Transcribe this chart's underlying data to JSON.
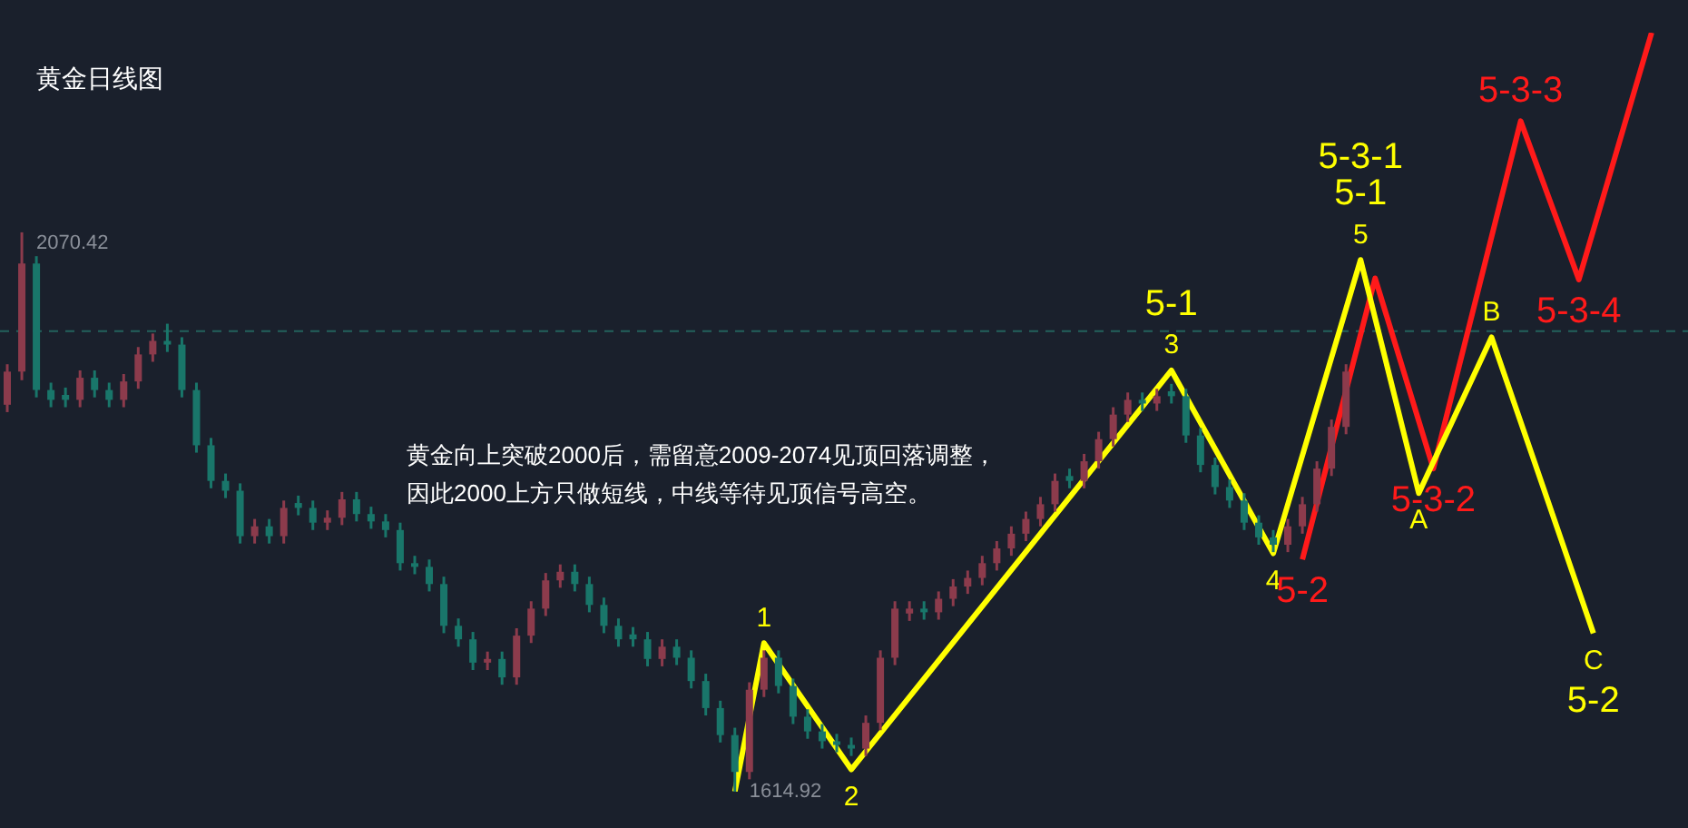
{
  "chart_data": {
    "type": "candlestick",
    "title": "黄金日线图",
    "annotations": [
      "黄金向上突破2000后，需留意2009-2074见顶回落调整，因此2000上方只做短线，中线等待见顶信号高空。",
      {
        "text": "1",
        "y": 1736
      },
      {
        "text": "2",
        "y": 1633
      },
      {
        "text": "5-1\n3",
        "y": 1958
      },
      {
        "text": "4",
        "y": 1809
      },
      {
        "text": "5-3-1\n5-1\n5",
        "y": 2048
      },
      {
        "text": "A",
        "y": 1858
      },
      {
        "text": "B",
        "y": 1985
      },
      {
        "text": "C\n5-2",
        "y": 1744
      },
      {
        "text": "5-2",
        "y": 1804
      },
      {
        "text": "5-3-2",
        "y": 1878
      },
      {
        "text": "5-3-3",
        "y": 2161
      },
      {
        "text": "5-3-4",
        "y": 2032
      }
    ],
    "categories": [
      null,
      null,
      null,
      null,
      null,
      null,
      null,
      null,
      null,
      null,
      null,
      null,
      null,
      null,
      null,
      null,
      null,
      null,
      null,
      null,
      null,
      null,
      null,
      null,
      null,
      null,
      null,
      null,
      null,
      null,
      null,
      null,
      null,
      null,
      null,
      null,
      null,
      null,
      null,
      null,
      null,
      null,
      null,
      null,
      null,
      null,
      null,
      null,
      null,
      null,
      null,
      null,
      null,
      null,
      null,
      null,
      null,
      null,
      null,
      null,
      null,
      null,
      null,
      null,
      null,
      null,
      null,
      null,
      null,
      null,
      null,
      null,
      null,
      null,
      null,
      null,
      null,
      null,
      null,
      null,
      null,
      null,
      null,
      null,
      null,
      null,
      null,
      null,
      null,
      null,
      null,
      null,
      null,
      null,
      null,
      null,
      null,
      null,
      null,
      null,
      null,
      null,
      null,
      null,
      null,
      null,
      null,
      null,
      null,
      null,
      null,
      null,
      null,
      null,
      null,
      null
    ],
    "ohlc": [
      [
        1930,
        1963,
        1924,
        1957
      ],
      [
        1957,
        2070.42,
        1950,
        2045
      ],
      [
        2045,
        2051,
        1936,
        1942
      ],
      [
        1942,
        1948,
        1928,
        1934
      ],
      [
        1938,
        1944,
        1928,
        1934
      ],
      [
        1934,
        1958,
        1928,
        1952
      ],
      [
        1952,
        1958,
        1936,
        1942
      ],
      [
        1942,
        1948,
        1928,
        1934
      ],
      [
        1934,
        1955,
        1928,
        1949
      ],
      [
        1949,
        1977,
        1943,
        1971
      ],
      [
        1971,
        1988,
        1965,
        1982
      ],
      [
        1982,
        1996,
        1973,
        1979
      ],
      [
        1979,
        1985,
        1936,
        1942
      ],
      [
        1942,
        1948,
        1891,
        1897
      ],
      [
        1897,
        1903,
        1862,
        1868
      ],
      [
        1868,
        1874,
        1854,
        1860
      ],
      [
        1860,
        1866,
        1817,
        1823
      ],
      [
        1823,
        1837,
        1817,
        1831
      ],
      [
        1831,
        1837,
        1817,
        1823
      ],
      [
        1823,
        1852,
        1817,
        1846
      ],
      [
        1850,
        1856,
        1840,
        1846
      ],
      [
        1846,
        1852,
        1828,
        1834
      ],
      [
        1834,
        1844,
        1828,
        1838
      ],
      [
        1838,
        1859,
        1832,
        1853
      ],
      [
        1853,
        1859,
        1835,
        1841
      ],
      [
        1841,
        1847,
        1829,
        1835
      ],
      [
        1835,
        1841,
        1822,
        1828
      ],
      [
        1828,
        1834,
        1795,
        1801
      ],
      [
        1801,
        1807,
        1792,
        1798
      ],
      [
        1798,
        1804,
        1778,
        1784
      ],
      [
        1784,
        1790,
        1744,
        1750
      ],
      [
        1750,
        1756,
        1733,
        1739
      ],
      [
        1739,
        1745,
        1714,
        1720
      ],
      [
        1720,
        1729,
        1714,
        1723
      ],
      [
        1723,
        1729,
        1702,
        1708
      ],
      [
        1708,
        1748,
        1702,
        1742
      ],
      [
        1742,
        1770,
        1736,
        1764
      ],
      [
        1764,
        1793,
        1758,
        1787
      ],
      [
        1787,
        1800,
        1781,
        1794
      ],
      [
        1794,
        1800,
        1778,
        1784
      ],
      [
        1784,
        1790,
        1761,
        1767
      ],
      [
        1767,
        1773,
        1744,
        1750
      ],
      [
        1750,
        1756,
        1733,
        1739
      ],
      [
        1743,
        1749,
        1733,
        1739
      ],
      [
        1739,
        1745,
        1717,
        1723
      ],
      [
        1723,
        1739,
        1717,
        1733
      ],
      [
        1733,
        1739,
        1718,
        1724
      ],
      [
        1724,
        1730,
        1699,
        1705
      ],
      [
        1705,
        1711,
        1677,
        1683
      ],
      [
        1683,
        1689,
        1655,
        1661
      ],
      [
        1661,
        1667,
        1614.92,
        1631
      ],
      [
        1631,
        1704,
        1625,
        1698
      ],
      [
        1698,
        1730,
        1692,
        1724
      ],
      [
        1724,
        1730,
        1695,
        1701
      ],
      [
        1701,
        1707,
        1670,
        1676
      ],
      [
        1676,
        1682,
        1658,
        1664
      ],
      [
        1664,
        1670,
        1650,
        1656
      ],
      [
        1656,
        1662,
        1647,
        1653
      ],
      [
        1653,
        1659,
        1644,
        1650
      ],
      [
        1650,
        1677,
        1644,
        1671
      ],
      [
        1671,
        1730,
        1665,
        1724
      ],
      [
        1724,
        1770,
        1718,
        1764
      ],
      [
        1760,
        1770,
        1754,
        1764
      ],
      [
        1764,
        1770,
        1755,
        1761
      ],
      [
        1761,
        1778,
        1755,
        1772
      ],
      [
        1772,
        1788,
        1766,
        1782
      ],
      [
        1782,
        1795,
        1776,
        1789
      ],
      [
        1789,
        1807,
        1783,
        1801
      ],
      [
        1801,
        1819,
        1795,
        1813
      ],
      [
        1813,
        1831,
        1807,
        1825
      ],
      [
        1825,
        1843,
        1819,
        1837
      ],
      [
        1837,
        1855,
        1831,
        1849
      ],
      [
        1849,
        1874,
        1843,
        1868
      ],
      [
        1872,
        1878,
        1862,
        1868
      ],
      [
        1868,
        1890,
        1862,
        1884
      ],
      [
        1884,
        1908,
        1878,
        1902
      ],
      [
        1902,
        1928,
        1896,
        1922
      ],
      [
        1922,
        1940,
        1916,
        1934
      ],
      [
        1934,
        1940,
        1925,
        1931
      ],
      [
        1931,
        1943,
        1925,
        1937
      ],
      [
        1941,
        1947,
        1931,
        1937
      ],
      [
        1937,
        1943,
        1899,
        1905
      ],
      [
        1905,
        1911,
        1875,
        1881
      ],
      [
        1881,
        1887,
        1857,
        1863
      ],
      [
        1863,
        1869,
        1846,
        1852
      ],
      [
        1852,
        1858,
        1828,
        1834
      ],
      [
        1834,
        1840,
        1816,
        1822
      ],
      [
        1822,
        1828,
        1810,
        1816
      ],
      [
        1816,
        1837,
        1810,
        1831
      ],
      [
        1831,
        1855,
        1825,
        1849
      ],
      [
        1849,
        1884,
        1843,
        1878
      ],
      [
        1878,
        1918,
        1872,
        1912
      ],
      [
        1912,
        1963,
        1906,
        1957
      ],
      null,
      null,
      null,
      null,
      null,
      null,
      null,
      null,
      null,
      null,
      null,
      null,
      null,
      null,
      null,
      null,
      null,
      null,
      null,
      null,
      null,
      null,
      null
    ],
    "colors": [
      "#8c3b4c",
      "#8c3b4c",
      "#19766a",
      "#19766a",
      "#19766a",
      "#8c3b4c",
      "#19766a",
      "#19766a",
      "#8c3b4c",
      "#8c3b4c",
      "#8c3b4c",
      "#19766a",
      "#19766a",
      "#19766a",
      "#19766a",
      "#19766a",
      "#19766a",
      "#8c3b4c",
      "#19766a",
      "#8c3b4c",
      "#19766a",
      "#19766a",
      "#8c3b4c",
      "#8c3b4c",
      "#19766a",
      "#19766a",
      "#19766a",
      "#19766a",
      "#19766a",
      "#19766a",
      "#19766a",
      "#19766a",
      "#19766a",
      "#8c3b4c",
      "#19766a",
      "#8c3b4c",
      "#8c3b4c",
      "#8c3b4c",
      "#8c3b4c",
      "#19766a",
      "#19766a",
      "#19766a",
      "#19766a",
      "#19766a",
      "#19766a",
      "#8c3b4c",
      "#19766a",
      "#19766a",
      "#19766a",
      "#19766a",
      "#19766a",
      "#8c3b4c",
      "#8c3b4c",
      "#19766a",
      "#19766a",
      "#19766a",
      "#19766a",
      "#19766a",
      "#19766a",
      "#8c3b4c",
      "#8c3b4c",
      "#8c3b4c",
      "#8c3b4c",
      "#19766a",
      "#8c3b4c",
      "#8c3b4c",
      "#8c3b4c",
      "#8c3b4c",
      "#8c3b4c",
      "#8c3b4c",
      "#8c3b4c",
      "#8c3b4c",
      "#8c3b4c",
      "#19766a",
      "#8c3b4c",
      "#8c3b4c",
      "#8c3b4c",
      "#8c3b4c",
      "#19766a",
      "#8c3b4c",
      "#19766a",
      "#19766a",
      "#19766a",
      "#19766a",
      "#19766a",
      "#19766a",
      "#19766a",
      "#19766a",
      "#8c3b4c",
      "#8c3b4c",
      "#8c3b4c",
      "#8c3b4c",
      "#8c3b4c",
      null,
      null,
      null,
      null,
      null,
      null,
      null,
      null,
      null,
      null,
      null,
      null,
      null,
      null,
      null,
      null,
      null,
      null,
      null,
      null,
      null,
      null,
      null
    ],
    "value_labels": [
      null,
      "2070.42",
      null,
      null,
      null,
      null,
      null,
      null,
      null,
      null,
      null,
      null,
      null,
      null,
      null,
      null,
      null,
      null,
      null,
      null,
      null,
      null,
      null,
      null,
      null,
      null,
      null,
      null,
      null,
      null,
      null,
      null,
      null,
      null,
      null,
      null,
      null,
      null,
      null,
      null,
      null,
      null,
      null,
      null,
      null,
      null,
      null,
      null,
      null,
      null,
      "1614.92",
      null,
      null,
      null,
      null,
      null,
      null,
      null,
      null,
      null,
      null,
      null,
      null,
      null,
      null,
      null,
      null,
      null,
      null,
      null,
      null,
      null,
      null,
      null,
      null,
      null,
      null,
      null,
      null,
      null,
      null,
      null,
      null,
      null,
      null,
      null,
      null,
      null,
      null,
      null,
      null,
      null,
      null,
      null,
      null,
      null,
      null,
      null,
      null,
      null,
      null,
      null,
      null,
      null,
      null,
      null,
      null,
      null,
      null,
      null,
      null,
      null,
      null,
      null,
      null,
      null
    ],
    "series": [
      {
        "type": "line",
        "color": "#ffff00",
        "values": [
          null,
          null,
          null,
          null,
          null,
          null,
          null,
          null,
          null,
          null,
          null,
          null,
          null,
          null,
          null,
          null,
          null,
          null,
          null,
          null,
          null,
          null,
          null,
          null,
          null,
          null,
          null,
          null,
          null,
          null,
          null,
          null,
          null,
          null,
          null,
          null,
          null,
          null,
          null,
          null,
          null,
          null,
          null,
          null,
          null,
          null,
          null,
          null,
          null,
          null,
          1615,
          null,
          1736,
          null,
          null,
          null,
          null,
          null,
          1633,
          null,
          null,
          null,
          null,
          null,
          null,
          null,
          null,
          null,
          null,
          null,
          null,
          null,
          null,
          null,
          null,
          null,
          null,
          null,
          null,
          null,
          1958,
          null,
          null,
          null,
          null,
          null,
          null,
          1809,
          null,
          null,
          null,
          null,
          null,
          2048,
          null,
          null,
          null,
          1858,
          null,
          null,
          null,
          null,
          1985,
          null,
          null,
          null,
          null,
          null,
          null,
          1744,
          null,
          null,
          null,
          null,
          null,
          null
        ]
      },
      {
        "type": "line",
        "color": "#ff1a1a",
        "values": [
          null,
          null,
          null,
          null,
          null,
          null,
          null,
          null,
          null,
          null,
          null,
          null,
          null,
          null,
          null,
          null,
          null,
          null,
          null,
          null,
          null,
          null,
          null,
          null,
          null,
          null,
          null,
          null,
          null,
          null,
          null,
          null,
          null,
          null,
          null,
          null,
          null,
          null,
          null,
          null,
          null,
          null,
          null,
          null,
          null,
          null,
          null,
          null,
          null,
          null,
          null,
          null,
          null,
          null,
          null,
          null,
          null,
          null,
          null,
          null,
          null,
          null,
          null,
          null,
          null,
          null,
          null,
          null,
          null,
          null,
          null,
          null,
          null,
          null,
          null,
          null,
          null,
          null,
          null,
          null,
          null,
          null,
          null,
          null,
          null,
          null,
          null,
          null,
          null,
          1804,
          null,
          null,
          null,
          null,
          2033,
          null,
          null,
          null,
          1878,
          null,
          null,
          null,
          null,
          null,
          2161,
          null,
          null,
          null,
          2032,
          null,
          null,
          null,
          null,
          2233,
          null,
          null
        ]
      }
    ],
    "ref_lines": [
      {
        "axis": "y",
        "value": 1990,
        "color": "#23625c",
        "line_style": "dashed"
      }
    ],
    "legend": false,
    "tick_labels": false
  }
}
